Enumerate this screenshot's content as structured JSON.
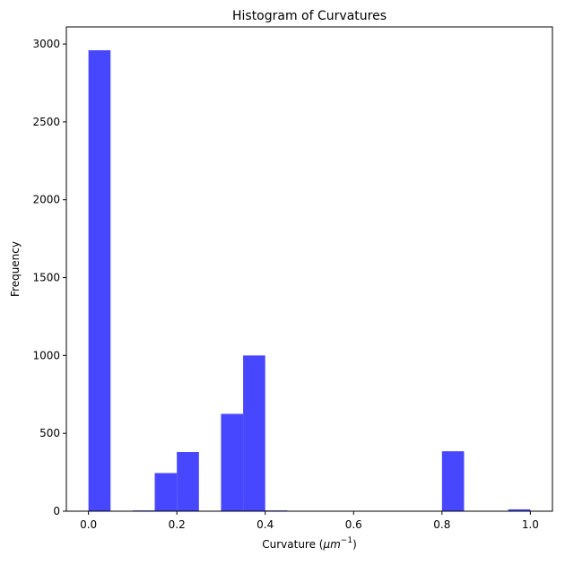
{
  "chart_data": {
    "type": "bar",
    "title": "Histogram of Curvatures",
    "xlabel_main": "Curvature (",
    "xlabel_unit_base": "μm",
    "xlabel_unit_exp": "−1",
    "xlabel_close": ")",
    "ylabel": "Frequency",
    "xlim": [
      -0.05,
      1.05
    ],
    "ylim": [
      0,
      3110
    ],
    "bin_width": 0.05,
    "bins": [
      {
        "x0": 0.0,
        "value": 2960
      },
      {
        "x0": 0.1,
        "value": 5
      },
      {
        "x0": 0.15,
        "value": 245
      },
      {
        "x0": 0.2,
        "value": 380
      },
      {
        "x0": 0.3,
        "value": 625
      },
      {
        "x0": 0.35,
        "value": 1000
      },
      {
        "x0": 0.4,
        "value": 5
      },
      {
        "x0": 0.8,
        "value": 385
      },
      {
        "x0": 0.95,
        "value": 12
      }
    ],
    "xticks": [
      {
        "value": 0.0,
        "label": "0.0"
      },
      {
        "value": 0.2,
        "label": "0.2"
      },
      {
        "value": 0.4,
        "label": "0.4"
      },
      {
        "value": 0.6,
        "label": "0.6"
      },
      {
        "value": 0.8,
        "label": "0.8"
      },
      {
        "value": 1.0,
        "label": "1.0"
      }
    ],
    "yticks": [
      {
        "value": 0,
        "label": "0"
      },
      {
        "value": 500,
        "label": "500"
      },
      {
        "value": 1000,
        "label": "1000"
      },
      {
        "value": 1500,
        "label": "1500"
      },
      {
        "value": 2000,
        "label": "2000"
      },
      {
        "value": 2500,
        "label": "2500"
      },
      {
        "value": 3000,
        "label": "3000"
      }
    ],
    "bar_color": "#4747ff",
    "grid": false
  }
}
